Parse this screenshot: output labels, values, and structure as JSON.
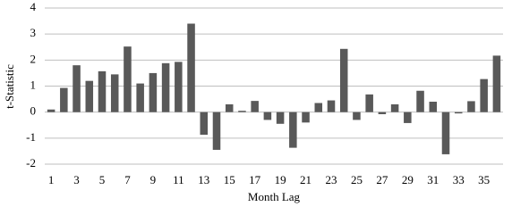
{
  "chart_data": {
    "type": "bar",
    "x_label": "Month Lag",
    "y_label": "t-Statistic",
    "categories": [
      1,
      null,
      3,
      null,
      5,
      null,
      7,
      null,
      9,
      null,
      11,
      null,
      13,
      null,
      15,
      null,
      17,
      null,
      19,
      null,
      21,
      null,
      23,
      null,
      25,
      null,
      27,
      null,
      29,
      null,
      31,
      null,
      33,
      null,
      35,
      null
    ],
    "values": [
      0.1,
      0.93,
      1.8,
      1.2,
      1.57,
      1.45,
      2.52,
      1.1,
      1.5,
      1.88,
      1.93,
      3.4,
      -0.87,
      -1.45,
      0.3,
      0.05,
      0.43,
      -0.3,
      -0.45,
      -1.37,
      -0.4,
      0.35,
      0.45,
      2.43,
      -0.3,
      0.68,
      -0.08,
      0.3,
      -0.42,
      0.82,
      0.4,
      -1.62,
      -0.05,
      0.42,
      1.27,
      2.17
    ],
    "color": "#595959",
    "ylim": [
      -2,
      4
    ],
    "yticks": [
      -2,
      -1,
      0,
      1,
      2,
      3,
      4
    ],
    "grid": true
  }
}
